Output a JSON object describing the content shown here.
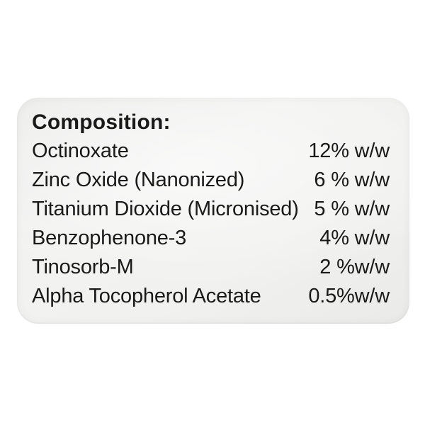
{
  "label": {
    "title": "Composition:",
    "ingredients": [
      {
        "name": "Octinoxate",
        "value": "12% w/w"
      },
      {
        "name": "Zinc Oxide (Nanonized)",
        "value": "6 % w/w"
      },
      {
        "name": "Titanium Dioxide (Micronised)",
        "value": "5 % w/w"
      },
      {
        "name": "Benzophenone-3",
        "value": "4% w/w"
      },
      {
        "name": "Tinosorb-M",
        "value": "2 %w/w"
      },
      {
        "name": "Alpha Tocopherol Acetate",
        "value": "0.5%w/w"
      }
    ],
    "colors": {
      "page_background": "#ffffff",
      "label_background": "#f1f1f0",
      "label_edge": "#eaeae9",
      "text": "#1a1a1a"
    }
  }
}
